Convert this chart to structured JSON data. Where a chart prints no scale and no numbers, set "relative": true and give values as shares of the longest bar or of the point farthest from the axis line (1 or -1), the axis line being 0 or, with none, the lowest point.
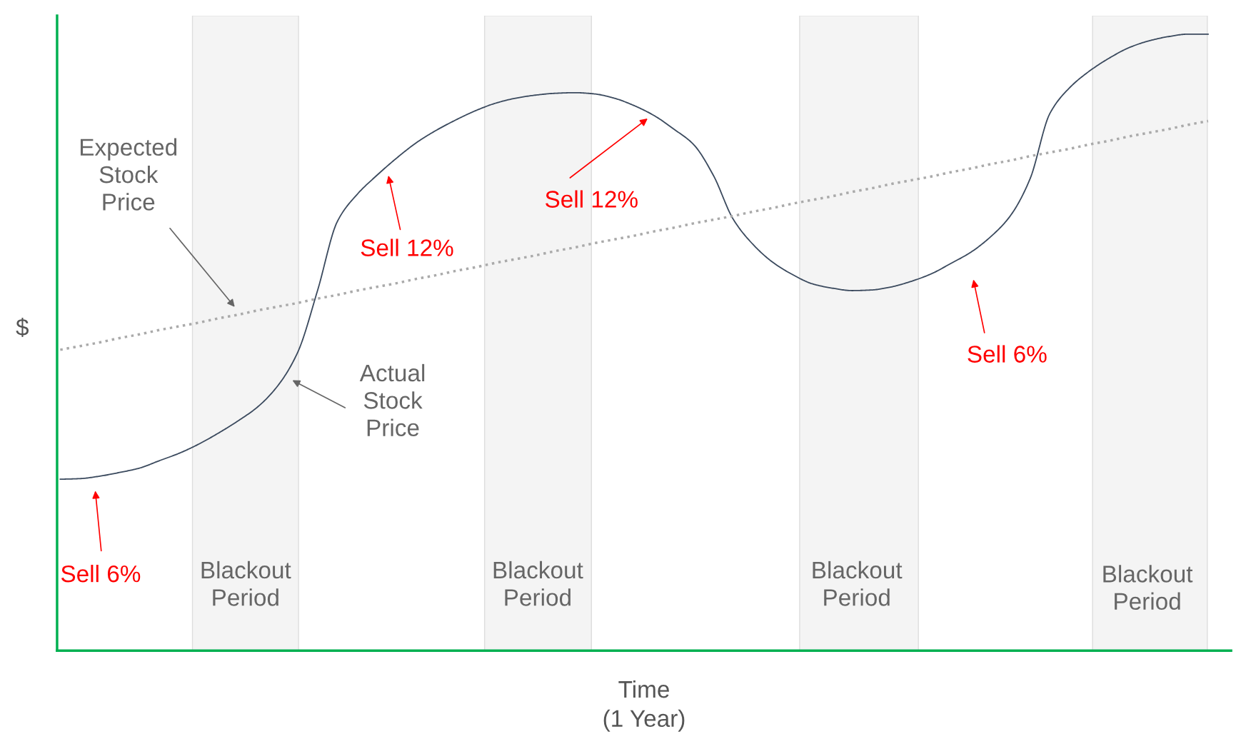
{
  "chart_data": {
    "type": "line",
    "relative": true,
    "xlabel": "Time\n(1 Year)",
    "ylabel": "$",
    "categories": [
      null,
      null,
      null,
      null,
      null,
      null,
      null,
      null,
      null,
      null,
      null,
      null,
      null,
      null,
      null,
      null,
      null,
      null,
      null,
      null,
      null,
      null,
      null,
      null,
      null,
      null,
      null,
      null,
      null,
      null,
      null,
      null,
      null,
      null,
      null,
      null,
      null,
      null,
      null,
      null,
      null,
      null,
      null,
      null,
      null,
      null,
      null,
      null,
      null,
      null,
      null,
      null,
      null,
      null,
      null,
      null,
      null,
      null,
      null
    ],
    "series": [
      {
        "color": "#3b4a5e",
        "line_style": "solid",
        "values": [
          0.278,
          0.279,
          0.283,
          0.289,
          0.296,
          0.308,
          0.32,
          0.335,
          0.353,
          0.373,
          0.396,
          0.43,
          0.484,
          0.584,
          0.696,
          0.74,
          0.771,
          0.799,
          0.824,
          0.844,
          0.861,
          0.876,
          0.888,
          0.896,
          0.901,
          0.904,
          0.905,
          0.903,
          0.896,
          0.884,
          0.868,
          0.846,
          0.821,
          0.771,
          0.7,
          0.659,
          0.63,
          0.61,
          0.595,
          0.588,
          0.584,
          0.585,
          0.59,
          0.599,
          0.611,
          0.628,
          0.646,
          0.671,
          0.705,
          0.765,
          0.871,
          0.913,
          0.94,
          0.961,
          0.978,
          0.989,
          0.996,
          1.0,
          1.0
        ]
      },
      {
        "color": "#aaaaaa",
        "line_style": "dotted",
        "values": [
          0.488,
          0.494,
          0.5,
          0.507,
          0.513,
          0.52,
          0.526,
          0.532,
          0.539,
          0.545,
          0.552,
          0.558,
          0.564,
          0.571,
          0.577,
          0.584,
          0.59,
          0.596,
          0.603,
          0.609,
          0.616,
          0.622,
          0.629,
          0.635,
          0.641,
          0.648,
          0.654,
          0.661,
          0.667,
          0.673,
          0.68,
          0.686,
          0.693,
          0.699,
          0.705,
          0.712,
          0.718,
          0.725,
          0.731,
          0.737,
          0.744,
          0.75,
          0.757,
          0.763,
          0.769,
          0.776,
          0.782,
          0.789,
          0.795,
          0.802,
          0.808,
          0.814,
          0.821,
          0.827,
          0.834,
          0.84,
          0.846,
          0.853,
          0.859
        ]
      }
    ],
    "annotations": [
      "Expected\nStock\nPrice",
      "Actual\nStock\nPrice",
      "Sell 6%",
      "Sell 12%",
      "Sell 12%",
      "Sell 6%",
      "Blackout\nPeriod",
      "Blackout\nPeriod",
      "Blackout\nPeriod",
      "Blackout\nPeriod"
    ]
  }
}
